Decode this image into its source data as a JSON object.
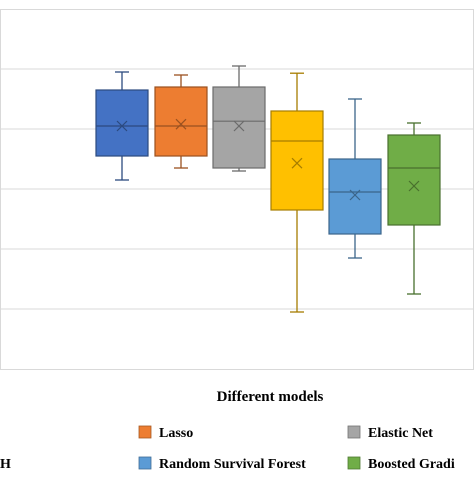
{
  "chart_data": {
    "type": "box",
    "xlabel": "Different models",
    "ylim": [
      0,
      6
    ],
    "grid": true,
    "legend_position": "bottom",
    "legend_partial_label": "H",
    "series": [
      {
        "name": "",
        "color": "#4472C4",
        "min": 3.15,
        "q1": 3.55,
        "median": 4.05,
        "mean": 4.05,
        "q3": 4.65,
        "max": 4.95
      },
      {
        "name": "Lasso",
        "color": "#ED7D31",
        "min": 3.35,
        "q1": 3.55,
        "median": 4.05,
        "mean": 4.08,
        "q3": 4.7,
        "max": 4.9
      },
      {
        "name": "Elastic Net",
        "color": "#A5A5A5",
        "min": 3.3,
        "q1": 3.35,
        "median": 4.13,
        "mean": 4.05,
        "q3": 4.7,
        "max": 5.05
      },
      {
        "name": "",
        "color": "#FFC000",
        "min": 0.95,
        "q1": 2.65,
        "median": 3.8,
        "mean": 3.43,
        "q3": 4.3,
        "max": 4.93
      },
      {
        "name": "Random Survival Forest",
        "color": "#5B9BD5",
        "min": 1.85,
        "q1": 2.25,
        "median": 2.95,
        "mean": 2.9,
        "q3": 3.5,
        "max": 4.5
      },
      {
        "name": "Boosted Gradi",
        "color": "#70AD47",
        "min": 1.25,
        "q1": 2.4,
        "median": 3.35,
        "mean": 3.05,
        "q3": 3.9,
        "max": 4.1
      }
    ]
  },
  "legend": {
    "items": [
      {
        "label": "Lasso",
        "color": "#ED7D31"
      },
      {
        "label": "Elastic Net",
        "color": "#A5A5A5"
      },
      {
        "label": "Random Survival Forest",
        "color": "#5B9BD5"
      },
      {
        "label": "Boosted Gradi",
        "color": "#70AD47"
      }
    ]
  }
}
